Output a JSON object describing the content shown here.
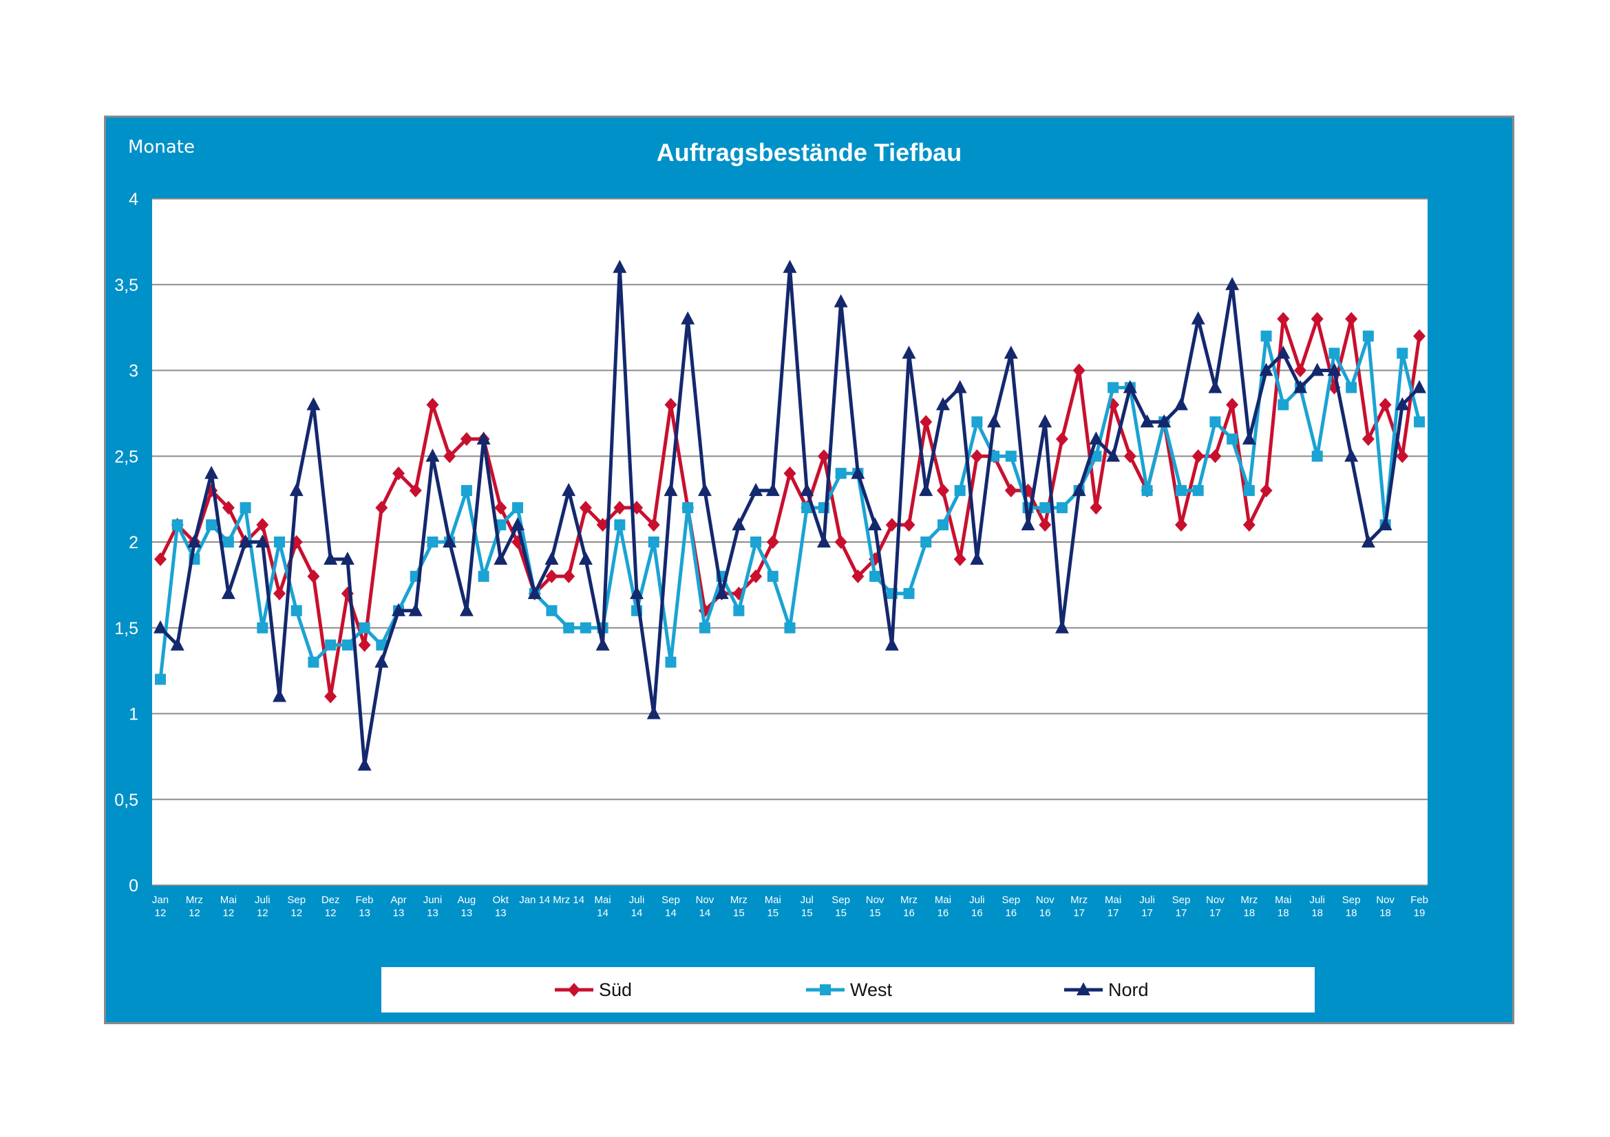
{
  "chart_data": {
    "type": "line",
    "title": "Auftragsbestände Tiefbau",
    "ylabel": "Monate",
    "ylim": [
      0,
      4
    ],
    "yticks": [
      "0",
      "0,5",
      "1",
      "1,5",
      "2",
      "2,5",
      "3",
      "3,5",
      "4"
    ],
    "grid": true,
    "legend": "bottom",
    "x_tick_labels": [
      [
        "Jan",
        "12"
      ],
      [
        "Mrz",
        "12"
      ],
      [
        "Mai",
        "12"
      ],
      [
        "Juli",
        "12"
      ],
      [
        "Sep",
        "12"
      ],
      [
        "Dez",
        "12"
      ],
      [
        "Feb",
        "13"
      ],
      [
        "Apr",
        "13"
      ],
      [
        "Juni",
        "13"
      ],
      [
        "Aug",
        "13"
      ],
      [
        "Okt",
        "13"
      ],
      [
        "Jan 14",
        ""
      ],
      [
        "Mrz 14",
        ""
      ],
      [
        "Mai",
        "14"
      ],
      [
        "Juli",
        "14"
      ],
      [
        "Sep",
        "14"
      ],
      [
        "Nov",
        "14"
      ],
      [
        "Mrz",
        "15"
      ],
      [
        "Mai",
        "15"
      ],
      [
        "Jul",
        "15"
      ],
      [
        "Sep",
        "15"
      ],
      [
        "Nov",
        "15"
      ],
      [
        "Mrz",
        "16"
      ],
      [
        "Mai",
        "16"
      ],
      [
        "Juli",
        "16"
      ],
      [
        "Sep",
        "16"
      ],
      [
        "Nov",
        "16"
      ],
      [
        "Mrz",
        "17"
      ],
      [
        "Mai",
        "17"
      ],
      [
        "Juli",
        "17"
      ],
      [
        "Sep",
        "17"
      ],
      [
        "Nov",
        "17"
      ],
      [
        "Mrz",
        "18"
      ],
      [
        "Mai",
        "18"
      ],
      [
        "Juli",
        "18"
      ],
      [
        "Sep",
        "18"
      ],
      [
        "Nov",
        "18"
      ],
      [
        "Feb",
        "19"
      ]
    ],
    "series": [
      {
        "name": "Süd",
        "color": "#c8102e",
        "marker": "diamond",
        "values": [
          1.9,
          2.1,
          2.0,
          2.3,
          2.2,
          2.0,
          2.1,
          1.7,
          2.0,
          1.8,
          1.1,
          1.7,
          1.4,
          2.2,
          2.4,
          2.3,
          2.8,
          2.5,
          2.6,
          2.6,
          2.2,
          2.0,
          1.7,
          1.8,
          1.8,
          2.2,
          2.1,
          2.2,
          2.2,
          2.1,
          2.8,
          2.2,
          1.6,
          1.7,
          1.7,
          1.8,
          2.0,
          2.4,
          2.2,
          2.5,
          2.0,
          1.8,
          1.9,
          2.1,
          2.1,
          2.7,
          2.3,
          1.9,
          2.5,
          2.5,
          2.3,
          2.3,
          2.1,
          2.6,
          3.0,
          2.2,
          2.8,
          2.5,
          2.3,
          2.7,
          2.1,
          2.5,
          2.5,
          2.8,
          2.1,
          2.3,
          3.3,
          3.0,
          3.3,
          2.9,
          3.3,
          2.6,
          2.8,
          2.5,
          3.2
        ]
      },
      {
        "name": "West",
        "color": "#1aa3d3",
        "marker": "square",
        "values": [
          1.2,
          2.1,
          1.9,
          2.1,
          2.0,
          2.2,
          1.5,
          2.0,
          1.6,
          1.3,
          1.4,
          1.4,
          1.5,
          1.4,
          1.6,
          1.8,
          2.0,
          2.0,
          2.3,
          1.8,
          2.1,
          2.2,
          1.7,
          1.6,
          1.5,
          1.5,
          1.5,
          2.1,
          1.6,
          2.0,
          1.3,
          2.2,
          1.5,
          1.8,
          1.6,
          2.0,
          1.8,
          1.5,
          2.2,
          2.2,
          2.4,
          2.4,
          1.8,
          1.7,
          1.7,
          2.0,
          2.1,
          2.3,
          2.7,
          2.5,
          2.5,
          2.2,
          2.2,
          2.2,
          2.3,
          2.5,
          2.9,
          2.9,
          2.3,
          2.7,
          2.3,
          2.3,
          2.7,
          2.6,
          2.3,
          3.2,
          2.8,
          2.9,
          2.5,
          3.1,
          2.9,
          3.2,
          2.1,
          3.1,
          2.7
        ]
      },
      {
        "name": "Nord",
        "color": "#14286e",
        "marker": "triangle",
        "values": [
          1.5,
          1.4,
          2.0,
          2.4,
          1.7,
          2.0,
          2.0,
          1.1,
          2.3,
          2.8,
          1.9,
          1.9,
          0.7,
          1.3,
          1.6,
          1.6,
          2.5,
          2.0,
          1.6,
          2.6,
          1.9,
          2.1,
          1.7,
          1.9,
          2.3,
          1.9,
          1.4,
          3.6,
          1.7,
          1.0,
          2.3,
          3.3,
          2.3,
          1.7,
          2.1,
          2.3,
          2.3,
          3.6,
          2.3,
          2.0,
          3.4,
          2.4,
          2.1,
          1.4,
          3.1,
          2.3,
          2.8,
          2.9,
          1.9,
          2.7,
          3.1,
          2.1,
          2.7,
          1.5,
          2.3,
          2.6,
          2.5,
          2.9,
          2.7,
          2.7,
          2.8,
          3.3,
          2.9,
          3.5,
          2.6,
          3.0,
          3.1,
          2.9,
          3.0,
          3.0,
          2.5,
          2.0,
          2.1,
          2.8,
          2.9
        ]
      }
    ]
  }
}
